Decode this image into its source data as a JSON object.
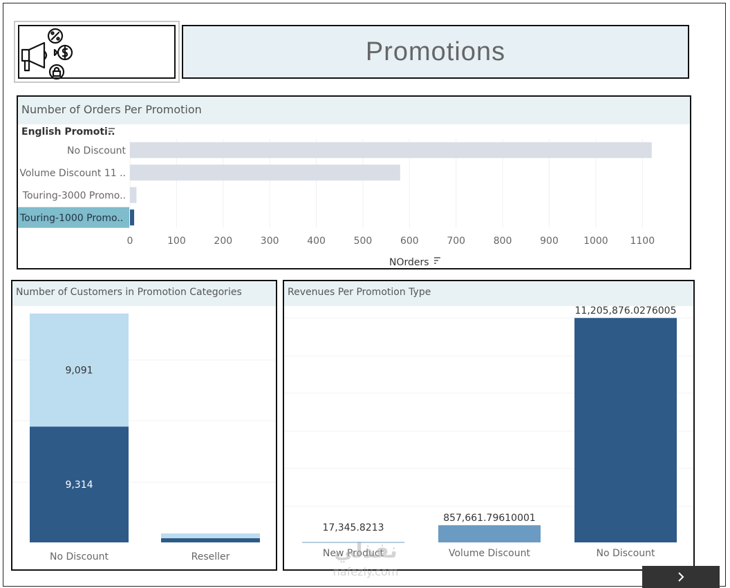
{
  "page_title": "Promotions",
  "logo_icon": "megaphone-percent-dollar-lock-icon",
  "nav_next_icon": "chevron-right-icon",
  "watermark": {
    "line1": "نفذلي",
    "line2": "nafezly.com"
  },
  "colors": {
    "dark_blue": "#2e5a88",
    "light_blue": "#bcdcef",
    "mid_blue": "#6b9bc3",
    "grey_bar": "#d9dde6",
    "highlight": "#7fbccc",
    "header_bg": "#e8f2f4"
  },
  "chart_data": [
    {
      "type": "bar",
      "orientation": "horizontal",
      "title": "Number of Orders Per Promotion",
      "ylabel": "English Promoti..",
      "xlabel": "NOrders",
      "categories": [
        "No Discount",
        "Volume Discount 11 ..",
        "Touring-3000 Promo..",
        "Touring-1000 Promo.."
      ],
      "values": [
        1120,
        580,
        14,
        9
      ],
      "highlighted": "Touring-1000 Promo..",
      "xlim": [
        0,
        1150
      ],
      "xticks": [
        0,
        100,
        200,
        300,
        400,
        500,
        600,
        700,
        800,
        900,
        1000,
        1100
      ]
    },
    {
      "type": "bar",
      "stacked": true,
      "title": "Number of Customers in Promotion Categories",
      "categories": [
        "No Discount",
        "Reseller"
      ],
      "series": [
        {
          "values": [
            9314,
            340
          ],
          "labels": [
            "9,314",
            ""
          ]
        },
        {
          "values": [
            9091,
            380
          ],
          "labels": [
            "9,091",
            ""
          ]
        }
      ],
      "ylim": [
        0,
        19000
      ]
    },
    {
      "type": "bar",
      "title": "Revenues Per Promotion Type",
      "categories": [
        "New Product",
        "Volume Discount",
        "No Discount"
      ],
      "values": [
        17345.8213,
        857661.79610001,
        11205876.0276005
      ],
      "labels": [
        "17,345.8213",
        "857,661.79610001",
        "11,205,876.0276005"
      ],
      "ylim": [
        0,
        11800000
      ]
    }
  ]
}
